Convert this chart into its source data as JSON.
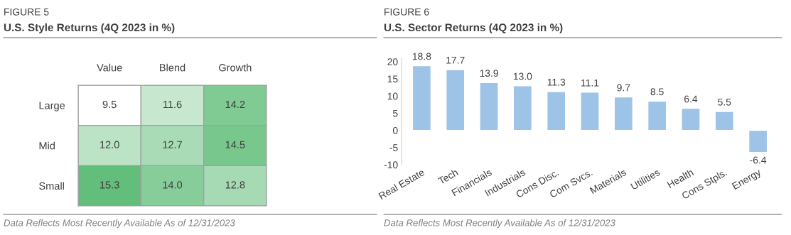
{
  "chart_data": [
    {
      "type": "heatmap",
      "subtitle": "FIGURE 5",
      "title": "U.S. Style Returns (4Q 2023 in %)",
      "categories": [
        "Value",
        "Blend",
        "Growth"
      ],
      "y_categories": [
        "Large",
        "Mid",
        "Small"
      ],
      "cells": [
        [
          9.5,
          11.6,
          14.2
        ],
        [
          12.0,
          12.7,
          14.5
        ],
        [
          15.3,
          14.0,
          12.8
        ]
      ],
      "data_labels": true,
      "cell_labels": [
        [
          "9.5",
          "11.6",
          "14.2"
        ],
        [
          "12.0",
          "12.7",
          "14.5"
        ],
        [
          "15.3",
          "14.0",
          "12.8"
        ]
      ],
      "annotations": [
        "Data Reflects Most Recently Available As of 12/31/2023"
      ]
    },
    {
      "type": "bar",
      "subtitle": "FIGURE 6",
      "title": "U.S. Sector Returns (4Q 2023 in %)",
      "categories": [
        "Real Estate",
        "Tech",
        "Financials",
        "Industrials",
        "Cons Disc.",
        "Com Svcs.",
        "Materials",
        "Utilities",
        "Health",
        "Cons Stpls.",
        "Energy"
      ],
      "values": [
        18.8,
        17.7,
        13.9,
        13.0,
        11.3,
        11.1,
        9.7,
        8.5,
        6.4,
        5.5,
        -6.4
      ],
      "color": "#9dc3e6",
      "ylim": [
        -10,
        21
      ],
      "yticks": [
        -10,
        -5,
        0,
        5,
        10,
        15,
        20
      ],
      "value_labels": [
        "18.8",
        "17.7",
        "13.9",
        "13.0",
        "11.3",
        "11.1",
        "9.7",
        "8.5",
        "6.4",
        "5.5",
        "-6.4"
      ],
      "grid": false,
      "annotations": [
        "Data Reflects Most Recently Available As of 12/31/2023"
      ]
    }
  ]
}
